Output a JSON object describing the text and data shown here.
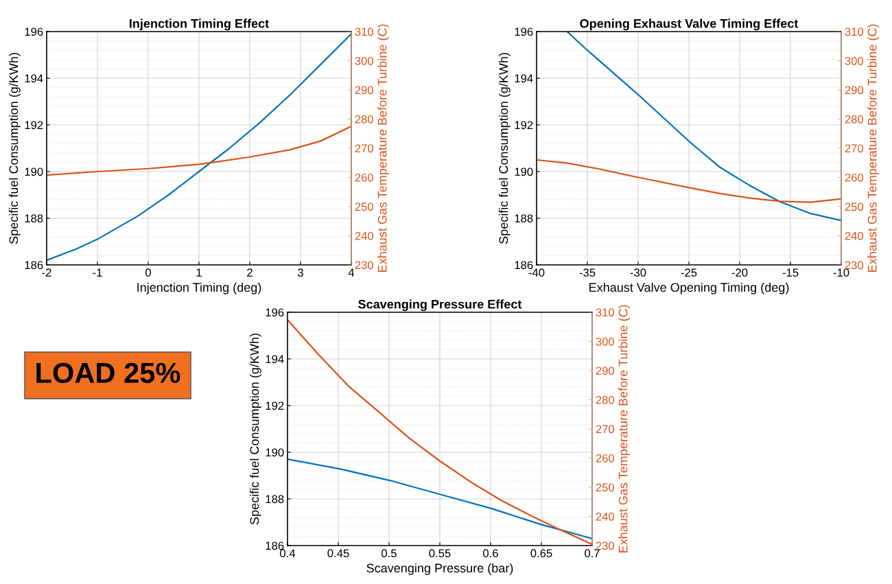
{
  "chart_data": [
    {
      "type": "line",
      "title": "Injenction Timing Effect",
      "xlabel": "Injenction Timing (deg)",
      "ylabel": "Specific fuel Consumption (g/KWh)",
      "y2label": "Exhaust Gas Temperature Before Turbine (C)",
      "xlim": [
        -2,
        4
      ],
      "xticks": [
        -2,
        -1,
        0,
        1,
        2,
        3,
        4
      ],
      "ylim": [
        186,
        196
      ],
      "yticks": [
        186,
        188,
        190,
        192,
        194,
        196
      ],
      "y2lim": [
        230,
        310
      ],
      "y2ticks": [
        230,
        240,
        250,
        260,
        270,
        280,
        290,
        300,
        310
      ],
      "grid": true,
      "line_style": "solid",
      "series": [
        {
          "color": "#0072bd",
          "axis": "y",
          "x": [
            -2,
            -1.4,
            -1,
            -0.2,
            0,
            0.4,
            1,
            1.6,
            2.2,
            2.8,
            3.4,
            4
          ],
          "values": [
            186.2,
            186.7,
            187.1,
            188.1,
            188.4,
            189.0,
            190.0,
            191.0,
            192.1,
            193.3,
            194.6,
            195.9
          ]
        },
        {
          "color": "#d95319",
          "axis": "y2",
          "x": [
            -2,
            -1,
            0,
            1,
            1.3,
            2,
            2.8,
            3.4,
            4
          ],
          "values": [
            260.8,
            262,
            263,
            264.5,
            265.2,
            267,
            269.5,
            272.5,
            277.5
          ]
        }
      ]
    },
    {
      "type": "line",
      "title": "Opening Exhaust Valve Timing Effect",
      "xlabel": "Exhaust Valve Opening Timing (deg)",
      "ylabel": "Specific fuel Consumption (g/KWh)",
      "y2label": "Exhaust Gas Temperature Before Turbine (C)",
      "xlim": [
        -40,
        -10
      ],
      "xticks": [
        -40,
        -35,
        -30,
        -25,
        -20,
        -15,
        -10
      ],
      "ylim": [
        186,
        196
      ],
      "yticks": [
        186,
        188,
        190,
        192,
        194,
        196
      ],
      "y2lim": [
        230,
        310
      ],
      "y2ticks": [
        230,
        240,
        250,
        260,
        270,
        280,
        290,
        300,
        310
      ],
      "grid": true,
      "line_style": "solid",
      "series": [
        {
          "color": "#0072bd",
          "axis": "y",
          "x": [
            -37,
            -35,
            -30,
            -25,
            -22,
            -19,
            -16,
            -13,
            -10
          ],
          "values": [
            196,
            195.2,
            193.3,
            191.3,
            190.2,
            189.4,
            188.7,
            188.2,
            187.9
          ]
        },
        {
          "color": "#d95319",
          "axis": "y2",
          "x": [
            -40,
            -37,
            -34,
            -30,
            -25,
            -22,
            -19,
            -16,
            -13,
            -10
          ],
          "values": [
            266,
            264.9,
            263,
            260,
            256.5,
            254.5,
            252.9,
            251.8,
            251.5,
            252.6
          ]
        }
      ]
    },
    {
      "type": "line",
      "title": "Scavenging Pressure Effect",
      "xlabel": "Scavenging Pressure (bar)",
      "ylabel": "Specific fuel Consumption (g/KWh)",
      "y2label": "Exhaust Gas Temperature Before Turbine (C)",
      "xlim": [
        0.4,
        0.7
      ],
      "xticks": [
        0.4,
        0.45,
        0.5,
        0.55,
        0.6,
        0.65,
        0.7
      ],
      "ylim": [
        186,
        196
      ],
      "yticks": [
        186,
        188,
        190,
        192,
        194,
        196
      ],
      "y2lim": [
        230,
        310
      ],
      "y2ticks": [
        230,
        240,
        250,
        260,
        270,
        280,
        290,
        300,
        310
      ],
      "grid": true,
      "line_style": "solid",
      "annotations": [
        "LOAD 25%"
      ],
      "series": [
        {
          "color": "#0072bd",
          "axis": "y",
          "x": [
            0.4,
            0.45,
            0.5,
            0.55,
            0.6,
            0.65,
            0.7
          ],
          "values": [
            189.7,
            189.3,
            188.8,
            188.2,
            187.6,
            186.9,
            186.3
          ]
        },
        {
          "color": "#d95319",
          "axis": "y2",
          "x": [
            0.4,
            0.43,
            0.46,
            0.49,
            0.52,
            0.55,
            0.58,
            0.61,
            0.64,
            0.67,
            0.7
          ],
          "values": [
            307.4,
            295.7,
            284.7,
            275.8,
            266.8,
            259,
            251.9,
            245.6,
            240.2,
            235.2,
            230.4
          ]
        }
      ]
    }
  ]
}
